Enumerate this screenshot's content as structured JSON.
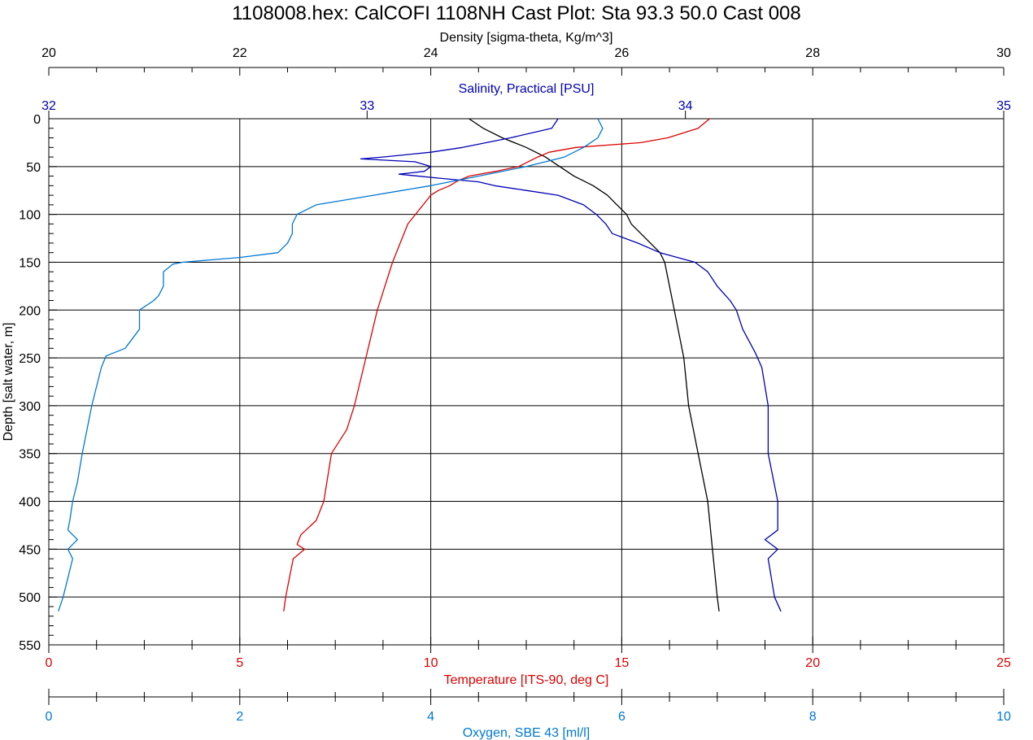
{
  "chart_data": {
    "type": "line",
    "title": "1108008.hex: CalCOFI 1108NH Cast Plot: Sta 93.3 50.0 Cast 008",
    "y_axis": {
      "label": "Depth [salt water, m]",
      "range": [
        0,
        550
      ],
      "ticks": [
        "0",
        "50",
        "100",
        "150",
        "200",
        "250",
        "300",
        "350",
        "400",
        "450",
        "500",
        "550"
      ],
      "inverted": true,
      "grid": true
    },
    "x_axes": [
      {
        "id": "density",
        "label": "Density [sigma-theta, Kg/m^3]",
        "position": "top",
        "range": [
          20,
          30
        ],
        "ticks": [
          "20",
          "22",
          "24",
          "26",
          "28",
          "30"
        ],
        "color": "#000000",
        "grid": true
      },
      {
        "id": "salinity",
        "label": "Salinity, Practical [PSU]",
        "position": "top",
        "range": [
          32,
          35
        ],
        "ticks": [
          "32",
          "33",
          "34",
          "35"
        ],
        "color": "#0000b4",
        "grid": false
      },
      {
        "id": "temperature",
        "label": "Temperature [ITS-90, deg C]",
        "position": "bottom",
        "range": [
          0,
          25
        ],
        "ticks": [
          "0",
          "5",
          "10",
          "15",
          "20",
          "25"
        ],
        "color": "#dc0000",
        "grid": false
      },
      {
        "id": "oxygen",
        "label": "Oxygen, SBE 43 [ml/l]",
        "position": "bottom",
        "range": [
          0,
          10
        ],
        "ticks": [
          "0",
          "2",
          "4",
          "6",
          "8",
          "10"
        ],
        "color": "#0078d2",
        "grid": false
      }
    ],
    "series": [
      {
        "axis": "density",
        "color": "#000000",
        "points": [
          [
            0,
            24.4
          ],
          [
            10,
            24.55
          ],
          [
            20,
            24.75
          ],
          [
            30,
            25.0
          ],
          [
            40,
            25.2
          ],
          [
            50,
            25.35
          ],
          [
            60,
            25.5
          ],
          [
            70,
            25.7
          ],
          [
            80,
            25.85
          ],
          [
            90,
            25.95
          ],
          [
            100,
            26.05
          ],
          [
            110,
            26.1
          ],
          [
            120,
            26.2
          ],
          [
            130,
            26.3
          ],
          [
            140,
            26.4
          ],
          [
            150,
            26.45
          ],
          [
            175,
            26.5
          ],
          [
            200,
            26.55
          ],
          [
            250,
            26.65
          ],
          [
            300,
            26.7
          ],
          [
            350,
            26.8
          ],
          [
            400,
            26.9
          ],
          [
            450,
            26.95
          ],
          [
            500,
            27.0
          ],
          [
            515,
            27.02
          ]
        ]
      },
      {
        "axis": "salinity",
        "color": "#0000b4",
        "points": [
          [
            0,
            33.6
          ],
          [
            10,
            33.58
          ],
          [
            20,
            33.45
          ],
          [
            30,
            33.3
          ],
          [
            35,
            33.2
          ],
          [
            40,
            33.05
          ],
          [
            42,
            32.98
          ],
          [
            45,
            33.15
          ],
          [
            50,
            33.2
          ],
          [
            55,
            33.18
          ],
          [
            58,
            33.1
          ],
          [
            62,
            33.22
          ],
          [
            66,
            33.35
          ],
          [
            70,
            33.4
          ],
          [
            75,
            33.5
          ],
          [
            80,
            33.6
          ],
          [
            90,
            33.68
          ],
          [
            100,
            33.72
          ],
          [
            110,
            33.75
          ],
          [
            120,
            33.77
          ],
          [
            130,
            33.85
          ],
          [
            140,
            33.92
          ],
          [
            150,
            34.03
          ],
          [
            160,
            34.07
          ],
          [
            175,
            34.1
          ],
          [
            190,
            34.14
          ],
          [
            200,
            34.16
          ],
          [
            220,
            34.18
          ],
          [
            245,
            34.22
          ],
          [
            260,
            34.24
          ],
          [
            300,
            34.26
          ],
          [
            350,
            34.26
          ],
          [
            400,
            34.29
          ],
          [
            430,
            34.29
          ],
          [
            440,
            34.25
          ],
          [
            450,
            34.29
          ],
          [
            460,
            34.26
          ],
          [
            480,
            34.27
          ],
          [
            500,
            34.28
          ],
          [
            515,
            34.3
          ]
        ]
      },
      {
        "axis": "temperature",
        "color": "#dc0000",
        "points": [
          [
            0,
            17.3
          ],
          [
            10,
            17.0
          ],
          [
            20,
            16.2
          ],
          [
            25,
            15.5
          ],
          [
            30,
            13.8
          ],
          [
            35,
            13.1
          ],
          [
            40,
            12.8
          ],
          [
            50,
            12.3
          ],
          [
            55,
            11.7
          ],
          [
            60,
            11.0
          ],
          [
            65,
            10.7
          ],
          [
            70,
            10.5
          ],
          [
            75,
            10.2
          ],
          [
            80,
            10.0
          ],
          [
            85,
            9.9
          ],
          [
            90,
            9.8
          ],
          [
            100,
            9.6
          ],
          [
            110,
            9.4
          ],
          [
            120,
            9.3
          ],
          [
            130,
            9.2
          ],
          [
            140,
            9.1
          ],
          [
            150,
            9.0
          ],
          [
            175,
            8.8
          ],
          [
            200,
            8.6
          ],
          [
            250,
            8.3
          ],
          [
            300,
            8.0
          ],
          [
            325,
            7.8
          ],
          [
            350,
            7.4
          ],
          [
            375,
            7.3
          ],
          [
            400,
            7.2
          ],
          [
            420,
            7.0
          ],
          [
            435,
            6.6
          ],
          [
            445,
            6.5
          ],
          [
            450,
            6.7
          ],
          [
            460,
            6.4
          ],
          [
            480,
            6.3
          ],
          [
            500,
            6.2
          ],
          [
            515,
            6.15
          ]
        ]
      },
      {
        "axis": "oxygen",
        "color": "#0078d2",
        "points": [
          [
            0,
            5.75
          ],
          [
            10,
            5.8
          ],
          [
            20,
            5.75
          ],
          [
            30,
            5.6
          ],
          [
            40,
            5.4
          ],
          [
            50,
            5.0
          ],
          [
            60,
            4.5
          ],
          [
            70,
            4.0
          ],
          [
            75,
            3.7
          ],
          [
            80,
            3.4
          ],
          [
            85,
            3.1
          ],
          [
            90,
            2.8
          ],
          [
            95,
            2.7
          ],
          [
            100,
            2.6
          ],
          [
            110,
            2.55
          ],
          [
            120,
            2.55
          ],
          [
            130,
            2.5
          ],
          [
            140,
            2.4
          ],
          [
            145,
            2.0
          ],
          [
            150,
            1.4
          ],
          [
            152,
            1.3
          ],
          [
            160,
            1.2
          ],
          [
            175,
            1.2
          ],
          [
            185,
            1.15
          ],
          [
            190,
            1.1
          ],
          [
            200,
            0.95
          ],
          [
            220,
            0.95
          ],
          [
            240,
            0.8
          ],
          [
            248,
            0.6
          ],
          [
            260,
            0.55
          ],
          [
            300,
            0.45
          ],
          [
            350,
            0.35
          ],
          [
            380,
            0.3
          ],
          [
            400,
            0.25
          ],
          [
            420,
            0.22
          ],
          [
            430,
            0.2
          ],
          [
            440,
            0.3
          ],
          [
            450,
            0.2
          ],
          [
            460,
            0.25
          ],
          [
            480,
            0.2
          ],
          [
            500,
            0.15
          ],
          [
            515,
            0.1
          ]
        ]
      }
    ]
  }
}
